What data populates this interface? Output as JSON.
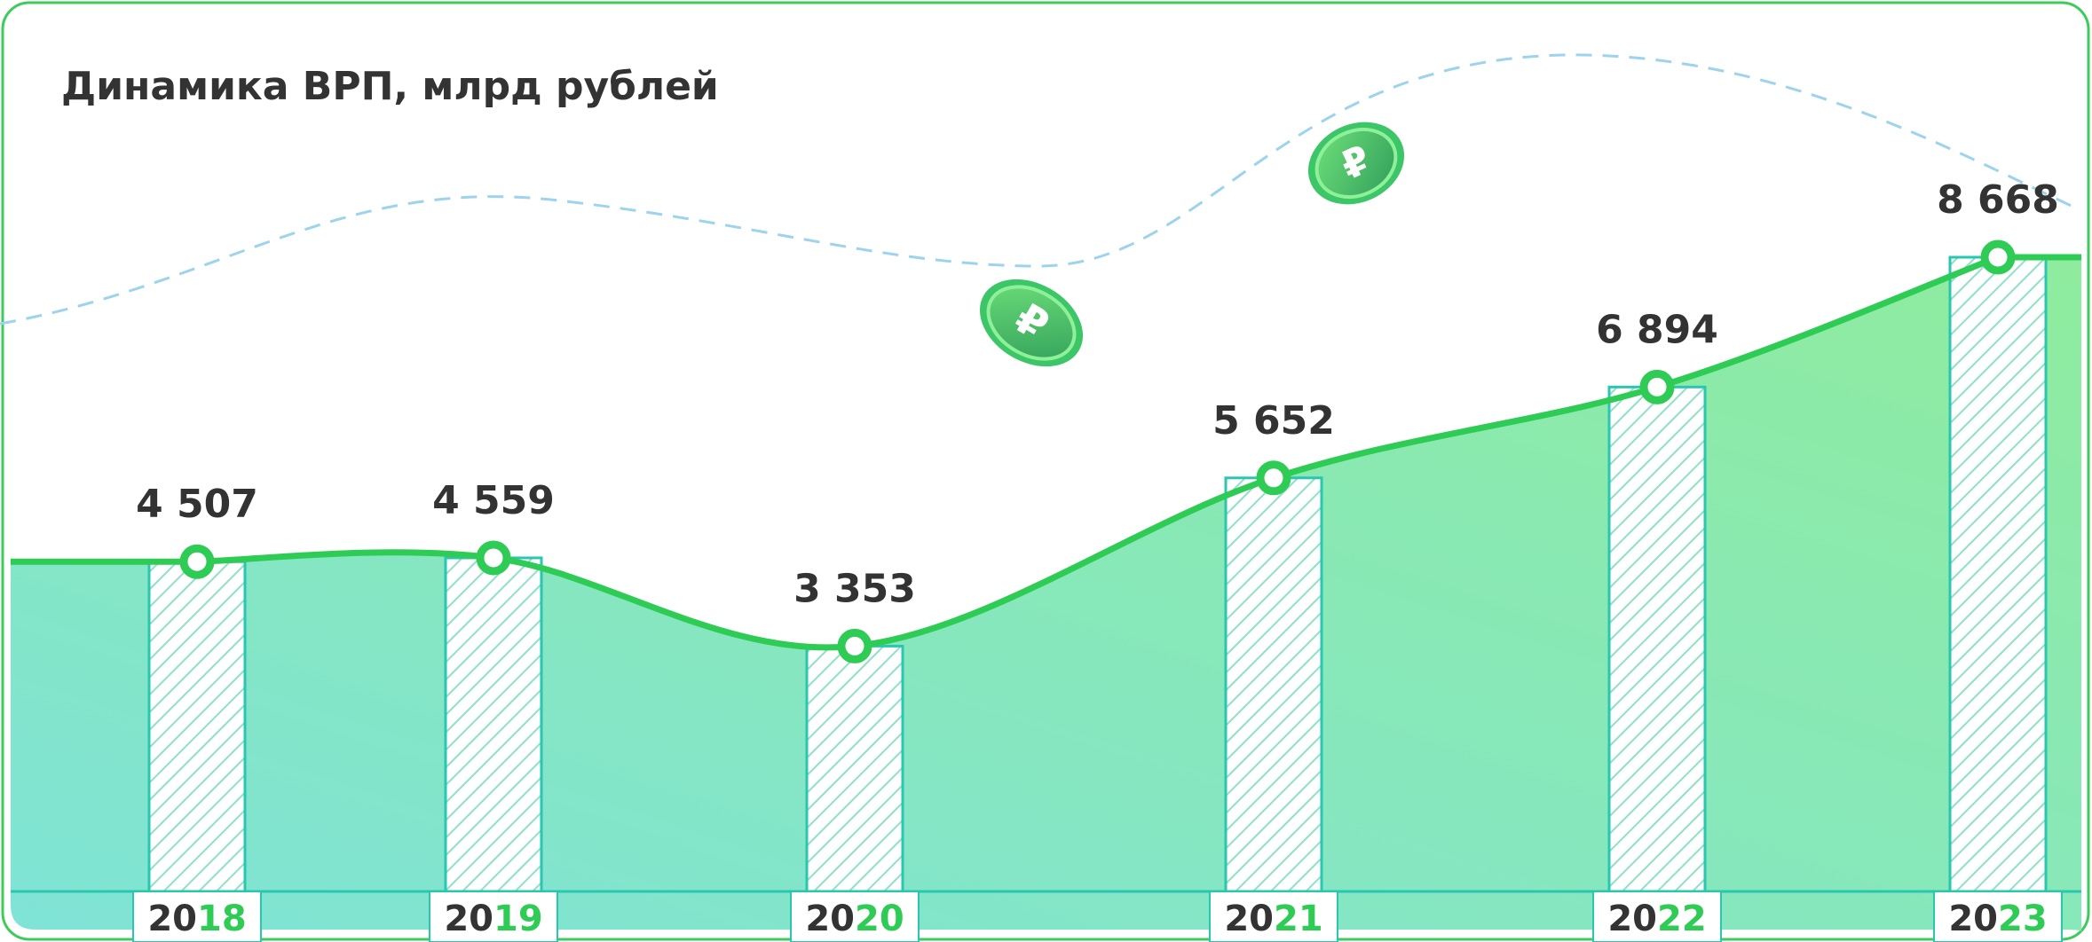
{
  "chart_data": {
    "type": "bar",
    "title": "Динамика ВРП, млрд рублей",
    "categories": [
      "2018",
      "2019",
      "2020",
      "2021",
      "2022",
      "2023"
    ],
    "values": [
      4507,
      4559,
      3353,
      5652,
      6894,
      8668
    ],
    "value_labels": [
      "4 507",
      "4 559",
      "3 353",
      "5 652",
      "6 894",
      "8 668"
    ],
    "color": "#2ecc55"
  }
}
